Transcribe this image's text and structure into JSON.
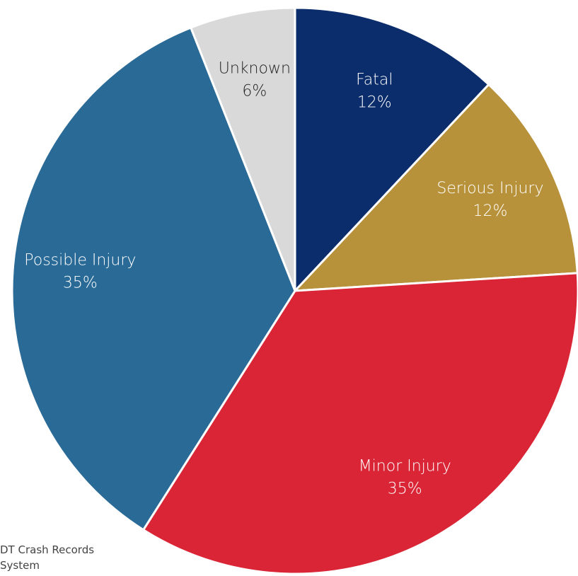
{
  "chart_data": {
    "type": "pie",
    "categories": [
      "Fatal",
      "Serious Injury",
      "Minor Injury",
      "Possible Injury",
      "Unknown"
    ],
    "values": [
      12,
      12,
      35,
      35,
      6
    ],
    "value_labels": [
      "12%",
      "12%",
      "35%",
      "35%",
      "6%"
    ],
    "colors": [
      "#0c2d6b",
      "#b8923a",
      "#d92535",
      "#2a6a97",
      "#d9d9d9"
    ],
    "source": [
      "DT Crash Records",
      "System"
    ]
  }
}
